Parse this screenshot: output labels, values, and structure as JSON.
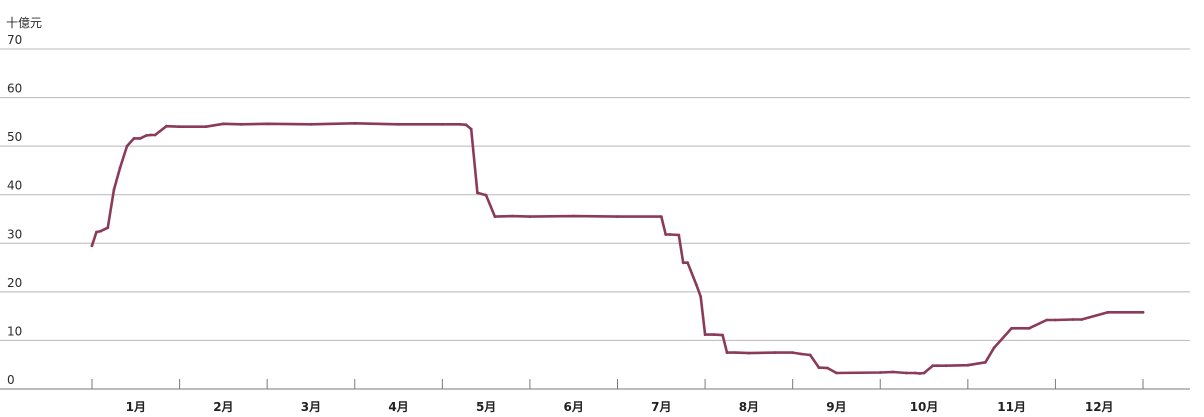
{
  "chart_data": {
    "type": "line",
    "unit_label": "十億元",
    "ylim": [
      0,
      70
    ],
    "y_ticks": [
      "0",
      "10",
      "20",
      "30",
      "40",
      "50",
      "60",
      "70"
    ],
    "grid": true,
    "categories": [
      "1月",
      "2月",
      "3月",
      "4月",
      "5月",
      "6月",
      "7月",
      "8月",
      "9月",
      "10月",
      "11月",
      "12月"
    ],
    "line_color": "#8b3a5a",
    "series": [
      {
        "x": [
          0.0,
          0.05,
          0.1,
          0.18,
          0.25,
          0.32,
          0.4,
          0.48,
          0.55,
          0.62,
          0.67,
          0.72,
          0.85,
          1.0,
          1.3,
          1.5,
          1.7,
          2.0,
          2.5,
          3.0,
          3.5,
          4.0,
          4.2,
          4.27,
          4.33,
          4.4,
          4.5,
          4.6,
          4.8,
          5.0,
          5.5,
          6.0,
          6.5,
          6.55,
          6.6,
          6.7,
          6.75,
          6.8,
          6.9,
          6.95,
          7.0,
          7.1,
          7.2,
          7.25,
          7.35,
          7.5,
          7.8,
          8.0,
          8.1,
          8.2,
          8.3,
          8.4,
          8.5,
          9.0,
          9.15,
          9.3,
          9.4,
          9.45,
          9.5,
          9.6,
          9.65,
          9.75,
          10.0,
          10.2,
          10.3,
          10.5,
          10.7,
          10.9,
          11.0,
          11.2,
          11.3,
          11.6,
          12.0
        ],
        "values": [
          29.5,
          32.3,
          32.5,
          33.2,
          41.0,
          45.5,
          50.0,
          51.6,
          51.6,
          52.2,
          52.3,
          52.3,
          54.1,
          54.0,
          54.0,
          54.6,
          54.5,
          54.6,
          54.5,
          54.7,
          54.5,
          54.5,
          54.5,
          54.4,
          53.5,
          40.4,
          39.9,
          35.5,
          35.6,
          35.5,
          35.6,
          35.5,
          35.5,
          31.8,
          31.8,
          31.7,
          26.0,
          26.0,
          21.5,
          19.0,
          11.2,
          11.2,
          11.1,
          7.5,
          7.5,
          7.4,
          7.5,
          7.5,
          7.2,
          7.0,
          4.4,
          4.3,
          3.3,
          3.4,
          3.5,
          3.3,
          3.3,
          3.2,
          3.3,
          4.8,
          4.8,
          4.8,
          4.9,
          5.5,
          8.5,
          12.5,
          12.5,
          14.2,
          14.2,
          14.3,
          14.3,
          15.8,
          15.8
        ]
      }
    ]
  }
}
